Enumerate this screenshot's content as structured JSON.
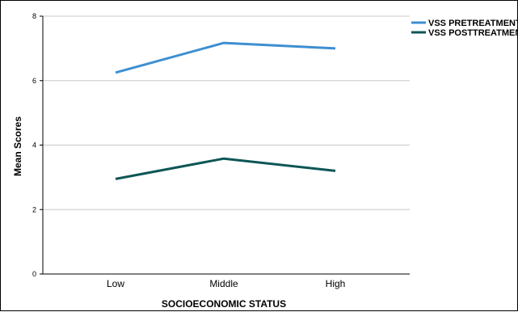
{
  "chart_data": {
    "type": "line",
    "categories": [
      "Low",
      "Middle",
      "High"
    ],
    "series": [
      {
        "name": "VSS PRETREATMENT",
        "values": [
          6.25,
          7.17,
          7.0
        ],
        "color": "#3d8fd1"
      },
      {
        "name": "VSS POSTTREATMENT",
        "values": [
          2.95,
          3.58,
          3.2
        ],
        "color": "#0d5656"
      }
    ],
    "xlabel": "SOCIOECONOMIC STATUS",
    "ylabel": "Mean Scores",
    "ylim": [
      0,
      8
    ],
    "yticks": [
      0,
      2,
      4,
      6,
      8
    ],
    "grid": true,
    "legend": "top-right"
  }
}
